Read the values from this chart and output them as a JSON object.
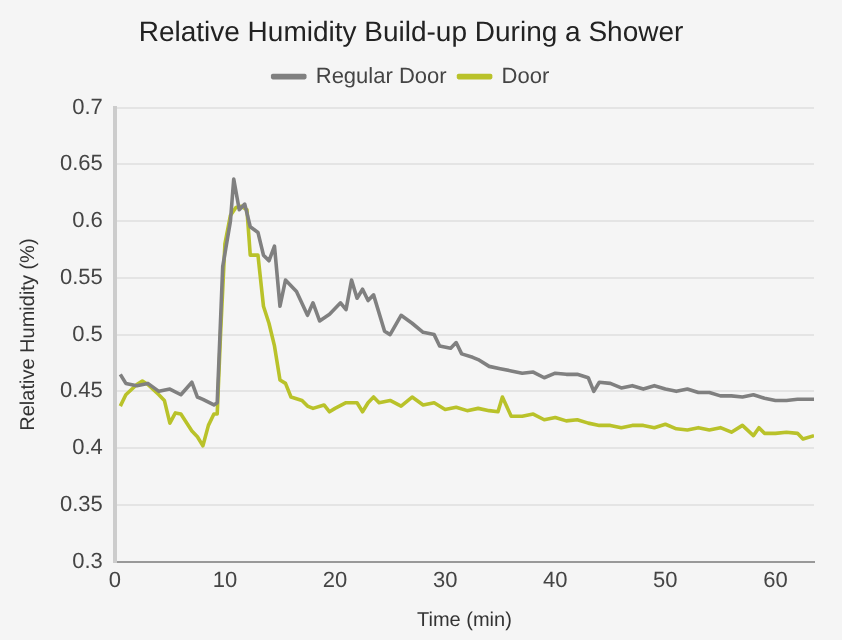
{
  "chart_data": {
    "type": "line",
    "title": "Relative Humidity Build-up During a Shower",
    "xlabel": "Time (min)",
    "ylabel": "Relative Humidity (%)",
    "xlim": [
      0,
      63.5
    ],
    "xticks": [
      0,
      10,
      20,
      30,
      40,
      50,
      60
    ],
    "ylim": [
      0.3,
      0.7
    ],
    "yticks": [
      0.3,
      0.35,
      0.4,
      0.45,
      0.5,
      0.55,
      0.6,
      0.65,
      0.7
    ],
    "grid": "y",
    "legend": "top",
    "marker": "none",
    "series": [
      {
        "name": "Regular Door",
        "color": "#808080",
        "x": [
          0.5,
          1,
          2,
          3,
          4,
          5,
          6,
          7,
          7.5,
          8,
          9,
          9.3,
          9.8,
          10.5,
          10.8,
          11.3,
          11.8,
          12.3,
          13,
          13.5,
          14,
          14.5,
          15,
          15.5,
          16.5,
          17.5,
          18,
          18.6,
          19.5,
          20.5,
          21,
          21.5,
          22,
          22.5,
          23,
          23.5,
          24.5,
          25,
          26,
          27,
          28,
          29,
          29.5,
          30.5,
          31,
          31.5,
          32.5,
          33,
          34,
          35,
          36,
          37,
          38,
          39,
          40,
          41,
          42,
          43,
          43.5,
          44,
          45,
          46,
          47,
          48,
          49,
          50,
          51,
          52,
          53,
          54,
          55,
          56,
          57,
          58,
          59,
          60,
          61,
          62,
          63.5
        ],
        "values": [
          0.465,
          0.457,
          0.455,
          0.457,
          0.45,
          0.452,
          0.447,
          0.458,
          0.445,
          0.443,
          0.438,
          0.44,
          0.56,
          0.6,
          0.637,
          0.61,
          0.615,
          0.595,
          0.59,
          0.57,
          0.565,
          0.578,
          0.525,
          0.548,
          0.538,
          0.517,
          0.528,
          0.512,
          0.518,
          0.528,
          0.522,
          0.548,
          0.532,
          0.54,
          0.53,
          0.535,
          0.503,
          0.5,
          0.517,
          0.51,
          0.502,
          0.5,
          0.49,
          0.488,
          0.493,
          0.483,
          0.48,
          0.478,
          0.472,
          0.47,
          0.468,
          0.466,
          0.467,
          0.462,
          0.466,
          0.465,
          0.465,
          0.462,
          0.45,
          0.458,
          0.457,
          0.453,
          0.455,
          0.452,
          0.455,
          0.452,
          0.45,
          0.452,
          0.449,
          0.449,
          0.446,
          0.446,
          0.445,
          0.447,
          0.444,
          0.442,
          0.442,
          0.443,
          0.443
        ]
      },
      {
        "name": "Door",
        "color": "#b9c22a",
        "x": [
          0.5,
          1,
          2,
          2.5,
          3,
          4,
          4.5,
          5,
          5.5,
          6,
          7,
          7.5,
          8,
          8.5,
          9,
          9.3,
          9.6,
          10,
          10.5,
          11,
          11.5,
          12,
          12.3,
          13,
          13.5,
          14,
          14.5,
          15,
          15.5,
          16,
          17,
          17.5,
          18,
          19,
          19.5,
          20,
          21,
          22,
          22.5,
          23,
          23.5,
          24,
          25,
          26,
          27,
          28,
          29,
          30,
          31,
          32,
          33,
          34,
          34.8,
          35.2,
          36,
          37,
          38,
          39,
          40,
          41,
          42,
          43,
          44,
          45,
          46,
          47,
          48,
          49,
          50,
          51,
          52,
          53,
          54,
          55,
          56,
          57,
          58,
          58.5,
          59,
          60,
          61,
          62,
          62.5,
          63.5
        ],
        "values": [
          0.437,
          0.447,
          0.456,
          0.459,
          0.456,
          0.447,
          0.442,
          0.422,
          0.431,
          0.43,
          0.415,
          0.41,
          0.402,
          0.42,
          0.43,
          0.43,
          0.5,
          0.58,
          0.605,
          0.612,
          0.613,
          0.61,
          0.57,
          0.57,
          0.525,
          0.51,
          0.49,
          0.46,
          0.457,
          0.445,
          0.442,
          0.437,
          0.435,
          0.438,
          0.432,
          0.435,
          0.44,
          0.44,
          0.432,
          0.44,
          0.445,
          0.44,
          0.442,
          0.437,
          0.445,
          0.438,
          0.44,
          0.434,
          0.436,
          0.433,
          0.435,
          0.433,
          0.432,
          0.445,
          0.428,
          0.428,
          0.43,
          0.425,
          0.427,
          0.424,
          0.425,
          0.422,
          0.42,
          0.42,
          0.418,
          0.42,
          0.42,
          0.418,
          0.421,
          0.417,
          0.416,
          0.418,
          0.416,
          0.418,
          0.414,
          0.42,
          0.411,
          0.418,
          0.413,
          0.413,
          0.414,
          0.413,
          0.408,
          0.411
        ]
      }
    ]
  }
}
